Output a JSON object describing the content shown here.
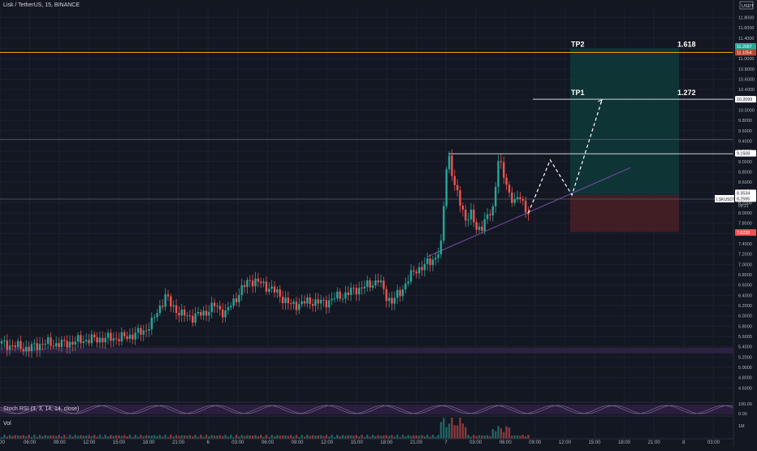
{
  "header": {
    "title": "Lisk / TetherUS, 15, BINANCE",
    "currency": "USDT"
  },
  "chart_data": {
    "type": "candlestick",
    "symbol": "LSKUSDT",
    "ylim": [
      4.4,
      11.95
    ],
    "y_ticks": [
      "11.8000",
      "11.6000",
      "11.4000",
      "11.2000",
      "11.0000",
      "10.8000",
      "10.6000",
      "10.4000",
      "10.2000",
      "10.0000",
      "9.8000",
      "9.6000",
      "9.4000",
      "9.2000",
      "9.0000",
      "8.8000",
      "8.6000",
      "8.4000",
      "8.2000",
      "8.0000",
      "7.8000",
      "7.6000",
      "7.4000",
      "7.2000",
      "7.0000",
      "6.8000",
      "6.6000",
      "6.4000",
      "6.2000",
      "6.0000",
      "5.8000",
      "5.6000",
      "5.4000",
      "5.2000",
      "5.0000",
      "4.8000",
      "4.6000"
    ],
    "x_ticks": [
      "6:00",
      "06:00",
      "09:00",
      "12:00",
      "15:00",
      "18:00",
      "21:00",
      "6",
      "03:00",
      "06:00",
      "09:00",
      "12:00",
      "15:00",
      "18:00",
      "21:00",
      "7",
      "03:00",
      "06:00",
      "09:00",
      "12:00",
      "15:00",
      "18:00",
      "21:00",
      "8",
      "03:00"
    ],
    "price_labels": [
      {
        "value": "11.2067",
        "color": "#26a69a"
      },
      {
        "value": "11.1054",
        "color": "#b7462c"
      },
      {
        "value": "10.2099",
        "color": "#ffffff"
      },
      {
        "value": "9.1508",
        "color": "#ffffff"
      },
      {
        "value": "8.3534",
        "color": "#ffffff"
      },
      {
        "value": "8.2595",
        "color": "#ffffff"
      },
      {
        "value": "7.6238",
        "color": "#ef5350"
      }
    ],
    "symbol_tag": "LSKUSDT",
    "countdown": "09:21",
    "levels": [
      {
        "price": 11.12,
        "color": "#f0a000"
      },
      {
        "price": 9.43,
        "color": "#4a4f5c"
      },
      {
        "price": 8.27,
        "color": "#4a4f5c"
      }
    ],
    "annotations": [
      {
        "text": "TP2",
        "price": 11.2
      },
      {
        "text": "1.618",
        "price": 11.2
      },
      {
        "text": "TP1",
        "price": 10.26
      },
      {
        "text": "1.272",
        "price": 10.26
      }
    ],
    "position": {
      "entry": 8.35,
      "target": 11.2,
      "stop": 7.63
    },
    "anchors": [
      [
        0,
        5.46
      ],
      [
        10,
        5.36
      ],
      [
        15,
        5.47
      ],
      [
        22,
        5.45
      ],
      [
        30,
        5.53
      ],
      [
        38,
        5.56
      ],
      [
        45,
        5.58
      ],
      [
        52,
        5.7
      ],
      [
        55,
        5.86
      ],
      [
        58,
        6.18
      ],
      [
        60,
        6.38
      ],
      [
        62,
        6.22
      ],
      [
        66,
        6.02
      ],
      [
        70,
        5.98
      ],
      [
        74,
        6.05
      ],
      [
        78,
        6.2
      ],
      [
        82,
        6.05
      ],
      [
        85,
        6.28
      ],
      [
        88,
        6.52
      ],
      [
        91,
        6.7
      ],
      [
        94,
        6.65
      ],
      [
        98,
        6.55
      ],
      [
        102,
        6.4
      ],
      [
        106,
        6.2
      ],
      [
        110,
        6.25
      ],
      [
        114,
        6.28
      ],
      [
        118,
        6.25
      ],
      [
        122,
        6.35
      ],
      [
        126,
        6.42
      ],
      [
        130,
        6.52
      ],
      [
        134,
        6.58
      ],
      [
        138,
        6.7
      ],
      [
        141,
        6.38
      ],
      [
        143,
        6.28
      ],
      [
        146,
        6.45
      ],
      [
        149,
        6.72
      ],
      [
        152,
        6.9
      ],
      [
        155,
        6.98
      ],
      [
        157,
        7.05
      ],
      [
        159,
        7.15
      ],
      [
        161,
        7.35
      ],
      [
        163,
        8.9
      ],
      [
        164,
        9.1
      ],
      [
        166,
        8.5
      ],
      [
        168,
        8.2
      ],
      [
        170,
        7.9
      ],
      [
        172,
        7.95
      ],
      [
        174,
        7.7
      ],
      [
        176,
        7.75
      ],
      [
        178,
        7.9
      ],
      [
        180,
        8.1
      ],
      [
        182,
        9.05
      ],
      [
        184,
        8.7
      ],
      [
        186,
        8.4
      ],
      [
        188,
        8.2
      ],
      [
        190,
        8.3
      ],
      [
        192,
        8.1
      ],
      [
        193,
        8.0
      ]
    ],
    "projection": [
      [
        193,
        8.0
      ],
      [
        201,
        9.03
      ],
      [
        209,
        8.35
      ],
      [
        220,
        10.2
      ]
    ],
    "series": [
      {
        "name": "Vol"
      }
    ],
    "stoch_rsi": {
      "label": "Stoch RSI (3, 3, 14, 14, close)",
      "value_label": "100.00",
      "zero_label": "0.00"
    },
    "volume": {
      "label": "Vol",
      "axis_label": "1M"
    }
  }
}
